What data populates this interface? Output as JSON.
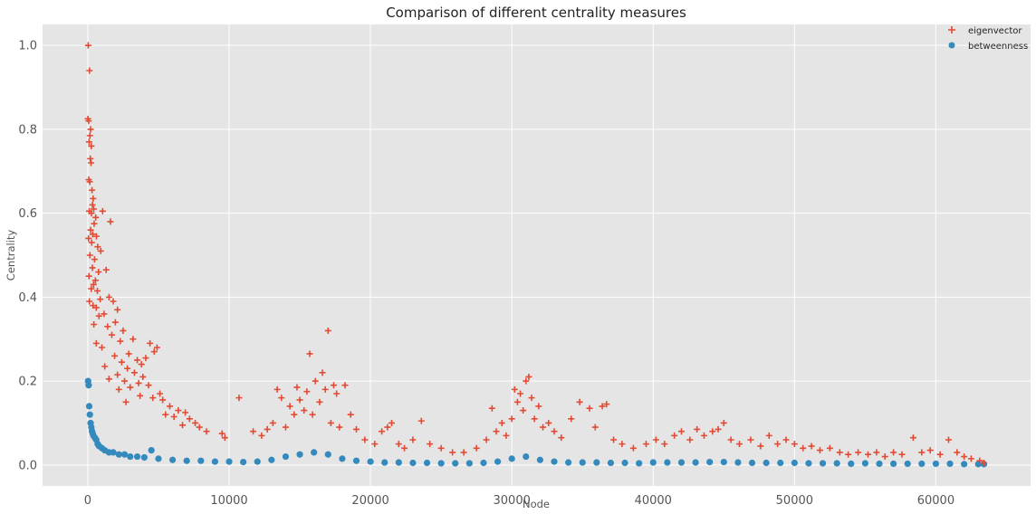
{
  "chart_data": {
    "type": "scatter",
    "title": "Comparison of different centrality measures",
    "xlabel": "Node",
    "ylabel": "Centrality",
    "xlim": [
      -3200,
      66700
    ],
    "ylim": [
      -0.05,
      1.05
    ],
    "xticks": [
      0,
      10000,
      20000,
      30000,
      40000,
      50000,
      60000
    ],
    "yticks": [
      0.0,
      0.2,
      0.4,
      0.6,
      0.8,
      1.0
    ],
    "ytick_labels": [
      "0.0",
      "0.2",
      "0.4",
      "0.6",
      "0.8",
      "1.0"
    ],
    "grid": true,
    "legend_position": "top-right",
    "series": [
      {
        "name": "eigenvector",
        "marker": "plus",
        "color": "#E24A33",
        "points": [
          [
            30,
            1.0
          ],
          [
            120,
            0.94
          ],
          [
            10,
            0.825
          ],
          [
            60,
            0.82
          ],
          [
            200,
            0.8
          ],
          [
            150,
            0.785
          ],
          [
            90,
            0.77
          ],
          [
            250,
            0.76
          ],
          [
            180,
            0.73
          ],
          [
            230,
            0.72
          ],
          [
            70,
            0.68
          ],
          [
            140,
            0.675
          ],
          [
            300,
            0.655
          ],
          [
            380,
            0.635
          ],
          [
            330,
            0.62
          ],
          [
            420,
            0.61
          ],
          [
            100,
            0.605
          ],
          [
            1050,
            0.605
          ],
          [
            260,
            0.6
          ],
          [
            560,
            0.59
          ],
          [
            1600,
            0.58
          ],
          [
            450,
            0.575
          ],
          [
            200,
            0.56
          ],
          [
            350,
            0.55
          ],
          [
            610,
            0.545
          ],
          [
            50,
            0.54
          ],
          [
            280,
            0.53
          ],
          [
            700,
            0.52
          ],
          [
            920,
            0.51
          ],
          [
            150,
            0.5
          ],
          [
            480,
            0.49
          ],
          [
            330,
            0.47
          ],
          [
            760,
            0.46
          ],
          [
            1300,
            0.465
          ],
          [
            80,
            0.45
          ],
          [
            540,
            0.44
          ],
          [
            410,
            0.43
          ],
          [
            250,
            0.42
          ],
          [
            680,
            0.415
          ],
          [
            1500,
            0.4
          ],
          [
            880,
            0.395
          ],
          [
            110,
            0.39
          ],
          [
            1800,
            0.39
          ],
          [
            370,
            0.38
          ],
          [
            600,
            0.375
          ],
          [
            2100,
            0.37
          ],
          [
            1150,
            0.36
          ],
          [
            790,
            0.355
          ],
          [
            1950,
            0.34
          ],
          [
            430,
            0.335
          ],
          [
            1400,
            0.33
          ],
          [
            2500,
            0.32
          ],
          [
            1700,
            0.31
          ],
          [
            3200,
            0.3
          ],
          [
            2300,
            0.295
          ],
          [
            4400,
            0.29
          ],
          [
            600,
            0.29
          ],
          [
            4900,
            0.28
          ],
          [
            1000,
            0.28
          ],
          [
            4700,
            0.27
          ],
          [
            2900,
            0.265
          ],
          [
            1900,
            0.26
          ],
          [
            4100,
            0.255
          ],
          [
            3500,
            0.25
          ],
          [
            2400,
            0.245
          ],
          [
            3800,
            0.24
          ],
          [
            1200,
            0.235
          ],
          [
            2800,
            0.23
          ],
          [
            3300,
            0.22
          ],
          [
            2100,
            0.215
          ],
          [
            3900,
            0.21
          ],
          [
            1500,
            0.205
          ],
          [
            2600,
            0.2
          ],
          [
            3600,
            0.195
          ],
          [
            4300,
            0.19
          ],
          [
            3000,
            0.185
          ],
          [
            2200,
            0.18
          ],
          [
            5100,
            0.17
          ],
          [
            3700,
            0.165
          ],
          [
            4600,
            0.16
          ],
          [
            5300,
            0.155
          ],
          [
            2700,
            0.15
          ],
          [
            5800,
            0.14
          ],
          [
            6400,
            0.13
          ],
          [
            6900,
            0.125
          ],
          [
            5500,
            0.12
          ],
          [
            6100,
            0.115
          ],
          [
            7200,
            0.11
          ],
          [
            7600,
            0.1
          ],
          [
            6700,
            0.095
          ],
          [
            7900,
            0.09
          ],
          [
            8400,
            0.08
          ],
          [
            9500,
            0.075
          ],
          [
            9700,
            0.065
          ],
          [
            10700,
            0.16
          ],
          [
            11700,
            0.08
          ],
          [
            12300,
            0.07
          ],
          [
            12700,
            0.085
          ],
          [
            13100,
            0.1
          ],
          [
            13400,
            0.18
          ],
          [
            13700,
            0.16
          ],
          [
            14000,
            0.09
          ],
          [
            14300,
            0.14
          ],
          [
            14600,
            0.12
          ],
          [
            14800,
            0.185
          ],
          [
            15000,
            0.155
          ],
          [
            15300,
            0.13
          ],
          [
            15500,
            0.175
          ],
          [
            15700,
            0.265
          ],
          [
            15900,
            0.12
          ],
          [
            16100,
            0.2
          ],
          [
            16400,
            0.15
          ],
          [
            16600,
            0.22
          ],
          [
            16800,
            0.18
          ],
          [
            17000,
            0.32
          ],
          [
            17200,
            0.1
          ],
          [
            17400,
            0.19
          ],
          [
            17600,
            0.17
          ],
          [
            17800,
            0.09
          ],
          [
            18200,
            0.19
          ],
          [
            18600,
            0.12
          ],
          [
            19000,
            0.085
          ],
          [
            19600,
            0.06
          ],
          [
            20300,
            0.05
          ],
          [
            20800,
            0.08
          ],
          [
            21200,
            0.09
          ],
          [
            21500,
            0.1
          ],
          [
            22000,
            0.05
          ],
          [
            22400,
            0.04
          ],
          [
            23000,
            0.06
          ],
          [
            23600,
            0.105
          ],
          [
            24200,
            0.05
          ],
          [
            25000,
            0.04
          ],
          [
            25800,
            0.03
          ],
          [
            26600,
            0.03
          ],
          [
            27500,
            0.04
          ],
          [
            28200,
            0.06
          ],
          [
            28600,
            0.135
          ],
          [
            28900,
            0.08
          ],
          [
            29300,
            0.1
          ],
          [
            29600,
            0.07
          ],
          [
            30000,
            0.11
          ],
          [
            30200,
            0.18
          ],
          [
            30400,
            0.15
          ],
          [
            30600,
            0.17
          ],
          [
            30800,
            0.13
          ],
          [
            31000,
            0.2
          ],
          [
            31200,
            0.21
          ],
          [
            31400,
            0.16
          ],
          [
            31600,
            0.11
          ],
          [
            31900,
            0.14
          ],
          [
            32200,
            0.09
          ],
          [
            32600,
            0.1
          ],
          [
            33000,
            0.08
          ],
          [
            33500,
            0.065
          ],
          [
            34200,
            0.11
          ],
          [
            34800,
            0.15
          ],
          [
            35500,
            0.135
          ],
          [
            35900,
            0.09
          ],
          [
            36400,
            0.14
          ],
          [
            36700,
            0.145
          ],
          [
            37200,
            0.06
          ],
          [
            37800,
            0.05
          ],
          [
            38600,
            0.04
          ],
          [
            39500,
            0.05
          ],
          [
            40200,
            0.06
          ],
          [
            40800,
            0.05
          ],
          [
            41500,
            0.07
          ],
          [
            42000,
            0.08
          ],
          [
            42600,
            0.06
          ],
          [
            43100,
            0.085
          ],
          [
            43600,
            0.07
          ],
          [
            44200,
            0.08
          ],
          [
            44600,
            0.085
          ],
          [
            45000,
            0.1
          ],
          [
            45500,
            0.06
          ],
          [
            46100,
            0.05
          ],
          [
            46900,
            0.06
          ],
          [
            47600,
            0.045
          ],
          [
            48200,
            0.07
          ],
          [
            48800,
            0.05
          ],
          [
            49400,
            0.06
          ],
          [
            50000,
            0.05
          ],
          [
            50600,
            0.04
          ],
          [
            51200,
            0.045
          ],
          [
            51800,
            0.035
          ],
          [
            52500,
            0.04
          ],
          [
            53200,
            0.03
          ],
          [
            53800,
            0.025
          ],
          [
            54500,
            0.03
          ],
          [
            55200,
            0.025
          ],
          [
            55800,
            0.03
          ],
          [
            56400,
            0.02
          ],
          [
            57000,
            0.03
          ],
          [
            57600,
            0.025
          ],
          [
            58400,
            0.065
          ],
          [
            59000,
            0.03
          ],
          [
            59600,
            0.035
          ],
          [
            60300,
            0.025
          ],
          [
            60900,
            0.06
          ],
          [
            61500,
            0.03
          ],
          [
            62000,
            0.02
          ],
          [
            62500,
            0.015
          ],
          [
            63100,
            0.01
          ],
          [
            63400,
            0.005
          ]
        ]
      },
      {
        "name": "betweenness",
        "marker": "circle",
        "color": "#348ABD",
        "points": [
          [
            20,
            0.2
          ],
          [
            60,
            0.19
          ],
          [
            100,
            0.14
          ],
          [
            150,
            0.12
          ],
          [
            200,
            0.1
          ],
          [
            250,
            0.09
          ],
          [
            300,
            0.08
          ],
          [
            350,
            0.075
          ],
          [
            400,
            0.07
          ],
          [
            500,
            0.065
          ],
          [
            600,
            0.06
          ],
          [
            700,
            0.05
          ],
          [
            800,
            0.045
          ],
          [
            1000,
            0.04
          ],
          [
            1200,
            0.035
          ],
          [
            1500,
            0.03
          ],
          [
            1800,
            0.03
          ],
          [
            2200,
            0.025
          ],
          [
            2600,
            0.025
          ],
          [
            3000,
            0.02
          ],
          [
            3500,
            0.02
          ],
          [
            4000,
            0.018
          ],
          [
            4500,
            0.035
          ],
          [
            5000,
            0.015
          ],
          [
            6000,
            0.012
          ],
          [
            7000,
            0.01
          ],
          [
            8000,
            0.01
          ],
          [
            9000,
            0.008
          ],
          [
            10000,
            0.008
          ],
          [
            11000,
            0.007
          ],
          [
            12000,
            0.008
          ],
          [
            13000,
            0.012
          ],
          [
            14000,
            0.02
          ],
          [
            15000,
            0.025
          ],
          [
            16000,
            0.03
          ],
          [
            17000,
            0.025
          ],
          [
            18000,
            0.015
          ],
          [
            19000,
            0.01
          ],
          [
            20000,
            0.008
          ],
          [
            21000,
            0.006
          ],
          [
            22000,
            0.006
          ],
          [
            23000,
            0.005
          ],
          [
            24000,
            0.005
          ],
          [
            25000,
            0.004
          ],
          [
            26000,
            0.004
          ],
          [
            27000,
            0.004
          ],
          [
            28000,
            0.005
          ],
          [
            29000,
            0.008
          ],
          [
            30000,
            0.015
          ],
          [
            31000,
            0.02
          ],
          [
            32000,
            0.012
          ],
          [
            33000,
            0.008
          ],
          [
            34000,
            0.006
          ],
          [
            35000,
            0.006
          ],
          [
            36000,
            0.006
          ],
          [
            37000,
            0.005
          ],
          [
            38000,
            0.005
          ],
          [
            39000,
            0.004
          ],
          [
            40000,
            0.006
          ],
          [
            41000,
            0.006
          ],
          [
            42000,
            0.006
          ],
          [
            43000,
            0.006
          ],
          [
            44000,
            0.007
          ],
          [
            45000,
            0.007
          ],
          [
            46000,
            0.006
          ],
          [
            47000,
            0.005
          ],
          [
            48000,
            0.005
          ],
          [
            49000,
            0.005
          ],
          [
            50000,
            0.005
          ],
          [
            51000,
            0.004
          ],
          [
            52000,
            0.004
          ],
          [
            53000,
            0.004
          ],
          [
            54000,
            0.003
          ],
          [
            55000,
            0.004
          ],
          [
            56000,
            0.003
          ],
          [
            57000,
            0.003
          ],
          [
            58000,
            0.003
          ],
          [
            59000,
            0.003
          ],
          [
            60000,
            0.003
          ],
          [
            61000,
            0.003
          ],
          [
            62000,
            0.002
          ],
          [
            63000,
            0.002
          ],
          [
            63400,
            0.002
          ]
        ]
      }
    ]
  }
}
